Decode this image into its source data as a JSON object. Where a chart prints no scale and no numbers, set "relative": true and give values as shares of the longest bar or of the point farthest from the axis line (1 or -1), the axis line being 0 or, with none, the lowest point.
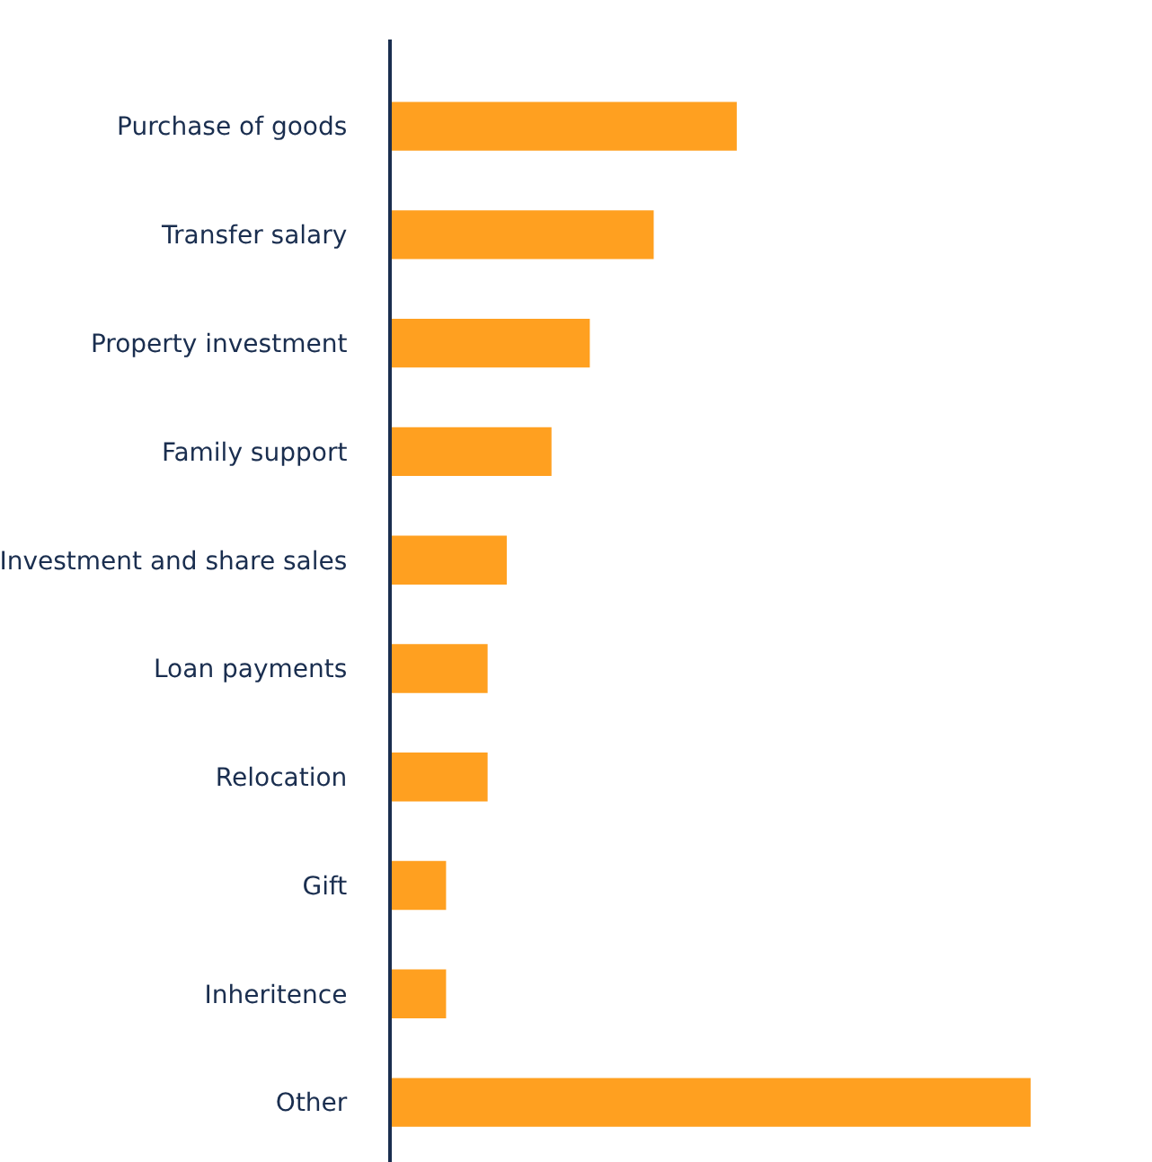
{
  "chart_data": {
    "type": "bar",
    "orientation": "horizontal",
    "relative": true,
    "legend": false,
    "categories": [
      "Purchase of goods",
      "Transfer salary",
      "Property investment",
      "Family support",
      "Investment and share sales",
      "Loan payments",
      "Relocation",
      "Gift",
      "Inheritence",
      "Other"
    ],
    "values": [
      0.54,
      0.41,
      0.31,
      0.25,
      0.18,
      0.15,
      0.15,
      0.085,
      0.085,
      1
    ],
    "color": "#ffa020"
  }
}
